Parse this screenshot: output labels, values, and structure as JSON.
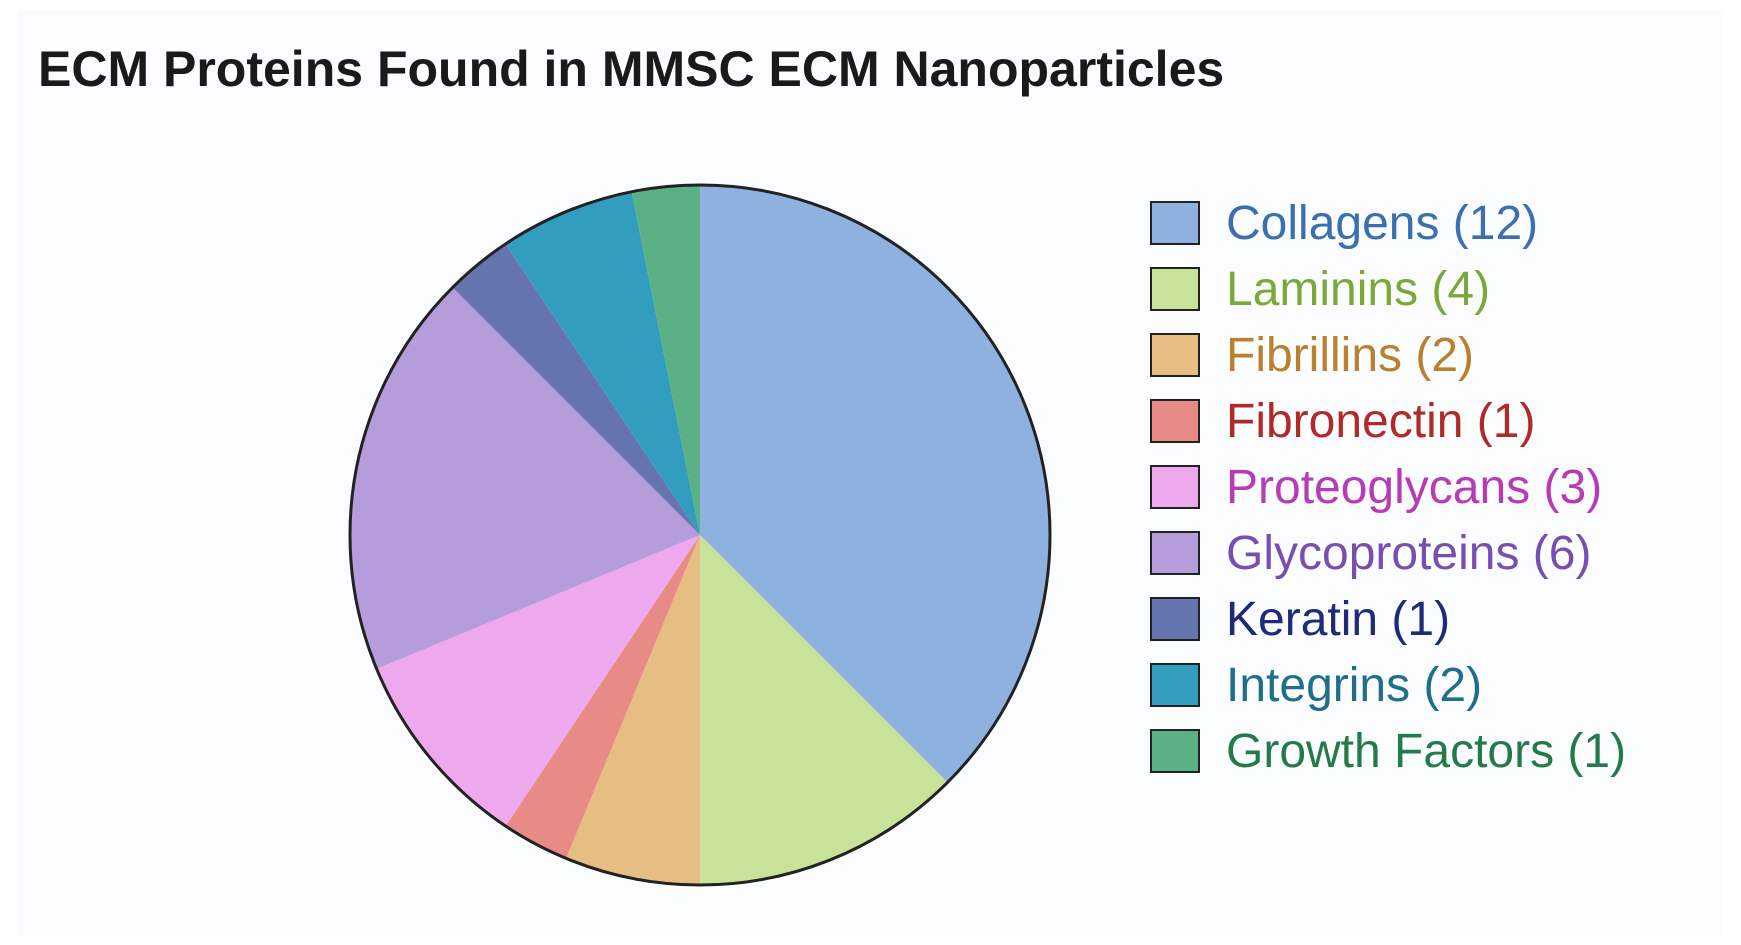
{
  "chart_data": {
    "type": "pie",
    "title": "ECM Proteins Found in MMSC ECM Nanoparticles",
    "legend_position": "right",
    "slices": [
      {
        "label": "Collagens (12)",
        "value": 12,
        "color": "#8fb1e0",
        "text_color": "#3a6fb0"
      },
      {
        "label": "Laminins (4)",
        "value": 4,
        "color": "#c8e29a",
        "text_color": "#7aa83a"
      },
      {
        "label": "Fibrillins (2)",
        "value": 2,
        "color": "#e6bd82",
        "text_color": "#b8802f"
      },
      {
        "label": "Fibronectin (1)",
        "value": 1,
        "color": "#e88b86",
        "text_color": "#b02a2a"
      },
      {
        "label": "Proteoglycans (3)",
        "value": 3,
        "color": "#eea8ee",
        "text_color": "#b63cb6"
      },
      {
        "label": "Glycoproteins (6)",
        "value": 6,
        "color": "#b59ddb",
        "text_color": "#7550b0"
      },
      {
        "label": "Keratin (1)",
        "value": 1,
        "color": "#6675b0",
        "text_color": "#1f2a78"
      },
      {
        "label": "Integrins (2)",
        "value": 2,
        "color": "#339dbf",
        "text_color": "#1f6f8a"
      },
      {
        "label": "Growth Factors (1)",
        "value": 1,
        "color": "#5bb085",
        "text_color": "#237a4a"
      }
    ]
  }
}
